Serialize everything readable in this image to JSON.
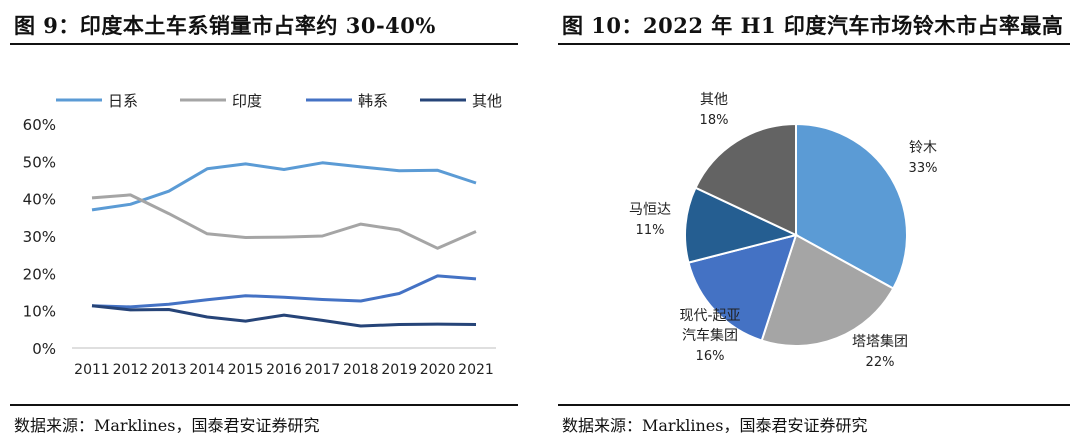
{
  "left": {
    "title": "图 9：印度本土车系销量市占率约 30-40%",
    "source": "数据来源：Marklines，国泰君安证券研究"
  },
  "right": {
    "title": "图 10：2022 年 H1 印度汽车市场铃木市占率最高",
    "source": "数据来源：Marklines，国泰君安证券研究"
  },
  "chart_data": [
    {
      "type": "line",
      "title": "印度本土车系销量市占率约 30-40%",
      "categories": [
        "2011",
        "2012",
        "2013",
        "2014",
        "2015",
        "2016",
        "2017",
        "2018",
        "2019",
        "2020",
        "2021"
      ],
      "ylim": [
        0,
        60
      ],
      "yticks": [
        0,
        10,
        20,
        30,
        40,
        50,
        60
      ],
      "ytick_labels": [
        "0%",
        "10%",
        "20%",
        "30%",
        "40%",
        "50%",
        "60%"
      ],
      "legend_position": "top",
      "series": [
        {
          "name": "日系",
          "color": "#5b9bd5",
          "values": [
            37,
            38.5,
            42,
            48,
            49.3,
            47.8,
            49.6,
            48.5,
            47.5,
            47.6,
            44.2
          ]
        },
        {
          "name": "印度",
          "color": "#a5a5a5",
          "values": [
            40.2,
            41,
            36,
            30.6,
            29.6,
            29.7,
            30,
            33.2,
            31.6,
            26.7,
            31.2
          ]
        },
        {
          "name": "韩系",
          "color": "#4472c4",
          "values": [
            11.3,
            11,
            11.7,
            12.9,
            14,
            13.6,
            13,
            12.6,
            14.6,
            19.3,
            18.5
          ]
        },
        {
          "name": "其他",
          "color": "#264478",
          "values": [
            11.3,
            10.2,
            10.3,
            8.3,
            7.2,
            8.8,
            7.4,
            5.9,
            6.3,
            6.4,
            6.3
          ]
        }
      ]
    },
    {
      "type": "pie",
      "title": "2022 年 H1 印度汽车市场铃木市占率最高",
      "slices": [
        {
          "name": "铃木",
          "value": 33,
          "label": "33%",
          "color": "#5b9bd5"
        },
        {
          "name": "塔塔集团",
          "value": 22,
          "label": "22%",
          "color": "#a5a5a5"
        },
        {
          "name": "现代-起亚汽车集团",
          "label_lines": [
            "现代-起亚",
            "汽车集团"
          ],
          "value": 16,
          "label": "16%",
          "color": "#4472c4"
        },
        {
          "name": "马恒达",
          "value": 11,
          "label": "11%",
          "color": "#255e91"
        },
        {
          "name": "其他",
          "value": 18,
          "label": "18%",
          "color": "#636363"
        }
      ]
    }
  ]
}
